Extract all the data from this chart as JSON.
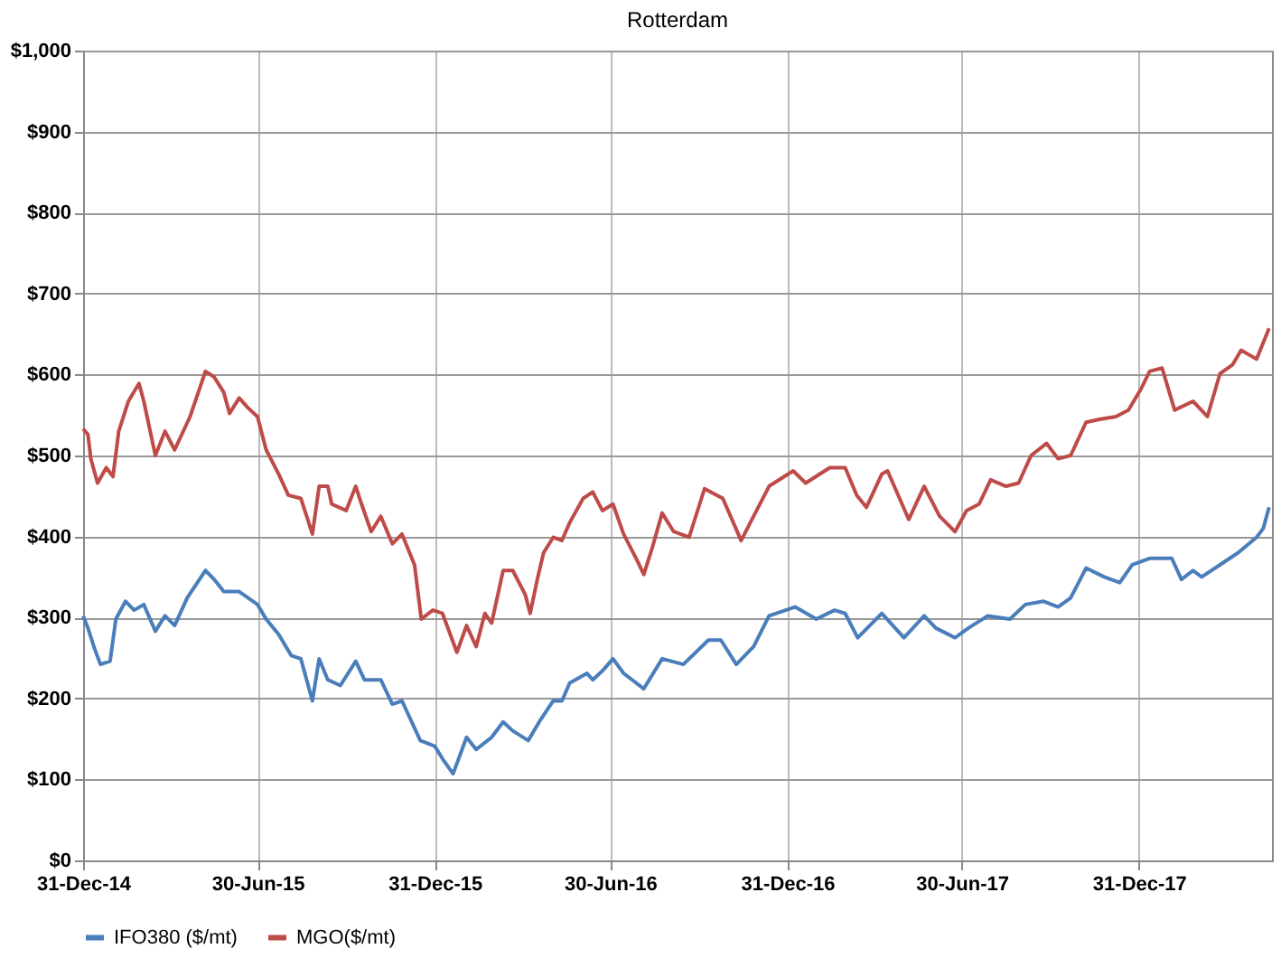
{
  "chart_data": {
    "type": "line",
    "title": "Rotterdam",
    "xlim": [
      "2014-12-31",
      "2018-05-18"
    ],
    "xticks": [
      {
        "value": "2014-12-31",
        "label": "31-Dec-14"
      },
      {
        "value": "2015-06-30",
        "label": "30-Jun-15"
      },
      {
        "value": "2015-12-31",
        "label": "31-Dec-15"
      },
      {
        "value": "2016-06-30",
        "label": "30-Jun-16"
      },
      {
        "value": "2016-12-31",
        "label": "31-Dec-16"
      },
      {
        "value": "2017-06-30",
        "label": "30-Jun-17"
      },
      {
        "value": "2017-12-31",
        "label": "31-Dec-17"
      }
    ],
    "ylim": [
      0,
      1000
    ],
    "yticks": [
      {
        "value": 0,
        "label": "$0"
      },
      {
        "value": 100,
        "label": "$100"
      },
      {
        "value": 200,
        "label": "$200"
      },
      {
        "value": 300,
        "label": "$300"
      },
      {
        "value": 400,
        "label": "$400"
      },
      {
        "value": 500,
        "label": "$500"
      },
      {
        "value": 600,
        "label": "$600"
      },
      {
        "value": 700,
        "label": "$700"
      },
      {
        "value": 800,
        "label": "$800"
      },
      {
        "value": 900,
        "label": "$900"
      },
      {
        "value": 1000,
        "label": "$1,000"
      }
    ],
    "grid": true,
    "legend": "bottom",
    "marker": "none",
    "line_style": "solid",
    "series": [
      {
        "name": "IFO380 ($/mt)",
        "color": "#4a7ebb",
        "x": [
          "2014-12-31",
          "2015-01-05",
          "2015-01-12",
          "2015-01-18",
          "2015-01-28",
          "2015-02-03",
          "2015-02-13",
          "2015-02-22",
          "2015-03-04",
          "2015-03-16",
          "2015-03-26",
          "2015-04-05",
          "2015-04-18",
          "2015-05-07",
          "2015-05-16",
          "2015-05-26",
          "2015-06-11",
          "2015-06-30",
          "2015-07-09",
          "2015-07-22",
          "2015-08-04",
          "2015-08-14",
          "2015-08-26",
          "2015-09-02",
          "2015-09-11",
          "2015-09-24",
          "2015-10-10",
          "2015-10-19",
          "2015-11-05",
          "2015-11-17",
          "2015-11-27",
          "2015-12-16",
          "2015-12-31",
          "2016-01-10",
          "2016-01-19",
          "2016-02-02",
          "2016-02-12",
          "2016-02-28",
          "2016-03-11",
          "2016-03-21",
          "2016-04-06",
          "2016-04-19",
          "2016-05-02",
          "2016-05-11",
          "2016-05-19",
          "2016-06-06",
          "2016-06-12",
          "2016-06-22",
          "2016-07-03",
          "2016-07-14",
          "2016-08-04",
          "2016-08-23",
          "2016-09-14",
          "2016-10-10",
          "2016-10-23",
          "2016-11-08",
          "2016-11-26",
          "2016-12-12",
          "2017-01-08",
          "2017-01-30",
          "2017-02-18",
          "2017-03-01",
          "2017-03-14",
          "2017-04-08",
          "2017-05-01",
          "2017-05-22",
          "2017-06-03",
          "2017-06-23",
          "2017-07-07",
          "2017-07-27",
          "2017-08-19",
          "2017-09-04",
          "2017-09-23",
          "2017-10-08",
          "2017-10-21",
          "2017-11-06",
          "2017-11-25",
          "2017-12-11",
          "2017-12-24",
          "2018-01-11",
          "2018-02-03",
          "2018-02-13",
          "2018-02-25",
          "2018-03-06",
          "2018-03-25",
          "2018-04-13",
          "2018-05-02",
          "2018-05-09",
          "2018-05-15"
        ],
        "values": [
          302,
          287,
          261,
          242,
          246,
          298,
          320,
          309,
          316,
          283,
          302,
          290,
          324,
          358,
          347,
          332,
          332,
          316,
          298,
          279,
          253,
          249,
          197,
          249,
          223,
          216,
          246,
          223,
          223,
          193,
          197,
          148,
          141,
          122,
          107,
          152,
          137,
          152,
          171,
          160,
          148,
          174,
          197,
          197,
          219,
          231,
          223,
          234,
          249,
          231,
          212,
          249,
          242,
          272,
          272,
          242,
          264,
          302,
          313,
          298,
          309,
          305,
          275,
          305,
          275,
          302,
          287,
          275,
          287,
          302,
          298,
          316,
          320,
          313,
          324,
          361,
          350,
          343,
          365,
          373,
          373,
          347,
          358,
          350,
          365,
          380,
          399,
          410,
          436
        ]
      },
      {
        "name": "MGO($/mt)",
        "color": "#be4b48",
        "x": [
          "2014-12-31",
          "2015-01-05",
          "2015-01-08",
          "2015-01-15",
          "2015-01-24",
          "2015-01-31",
          "2015-02-06",
          "2015-02-16",
          "2015-02-27",
          "2015-03-04",
          "2015-03-16",
          "2015-03-26",
          "2015-04-05",
          "2015-04-21",
          "2015-05-07",
          "2015-05-16",
          "2015-05-26",
          "2015-06-01",
          "2015-06-11",
          "2015-06-20",
          "2015-06-30",
          "2015-07-09",
          "2015-07-22",
          "2015-08-01",
          "2015-08-14",
          "2015-08-26",
          "2015-09-02",
          "2015-09-11",
          "2015-09-15",
          "2015-09-30",
          "2015-10-10",
          "2015-10-16",
          "2015-10-26",
          "2015-11-05",
          "2015-11-17",
          "2015-11-27",
          "2015-12-10",
          "2015-12-17",
          "2015-12-29",
          "2016-01-08",
          "2016-01-23",
          "2016-02-02",
          "2016-02-12",
          "2016-02-21",
          "2016-02-28",
          "2016-03-11",
          "2016-03-21",
          "2016-04-03",
          "2016-04-08",
          "2016-04-16",
          "2016-04-22",
          "2016-05-02",
          "2016-05-11",
          "2016-05-19",
          "2016-06-02",
          "2016-06-12",
          "2016-06-22",
          "2016-07-03",
          "2016-07-14",
          "2016-07-27",
          "2016-08-04",
          "2016-08-13",
          "2016-08-23",
          "2016-09-04",
          "2016-09-20",
          "2016-10-06",
          "2016-10-25",
          "2016-11-13",
          "2016-11-26",
          "2016-12-12",
          "2017-01-06",
          "2017-01-19",
          "2017-02-13",
          "2017-03-01",
          "2017-03-13",
          "2017-03-23",
          "2017-04-08",
          "2017-04-14",
          "2017-05-06",
          "2017-05-22",
          "2017-06-07",
          "2017-06-23",
          "2017-07-05",
          "2017-07-18",
          "2017-07-30",
          "2017-08-15",
          "2017-08-28",
          "2017-09-10",
          "2017-09-26",
          "2017-10-08",
          "2017-10-21",
          "2017-11-06",
          "2017-11-21",
          "2017-12-07",
          "2017-12-20",
          "2018-01-02",
          "2018-01-11",
          "2018-01-24",
          "2018-02-06",
          "2018-02-25",
          "2018-03-12",
          "2018-03-25",
          "2018-04-07",
          "2018-04-16",
          "2018-05-02",
          "2018-05-15"
        ],
        "values": [
          533,
          526,
          496,
          466,
          485,
          474,
          530,
          567,
          589,
          567,
          500,
          530,
          507,
          548,
          604,
          597,
          578,
          552,
          571,
          559,
          548,
          507,
          477,
          451,
          447,
          403,
          462,
          462,
          440,
          432,
          462,
          440,
          406,
          425,
          391,
          403,
          365,
          298,
          309,
          305,
          257,
          290,
          264,
          305,
          293,
          358,
          358,
          328,
          305,
          350,
          380,
          399,
          395,
          417,
          447,
          455,
          432,
          440,
          403,
          373,
          353,
          387,
          429,
          406,
          399,
          459,
          447,
          395,
          425,
          462,
          481,
          466,
          485,
          485,
          451,
          436,
          477,
          481,
          421,
          462,
          425,
          406,
          432,
          440,
          470,
          462,
          466,
          500,
          515,
          496,
          500,
          541,
          545,
          548,
          556,
          582,
          604,
          608,
          556,
          567,
          548,
          601,
          612,
          630,
          619,
          657
        ]
      }
    ]
  }
}
